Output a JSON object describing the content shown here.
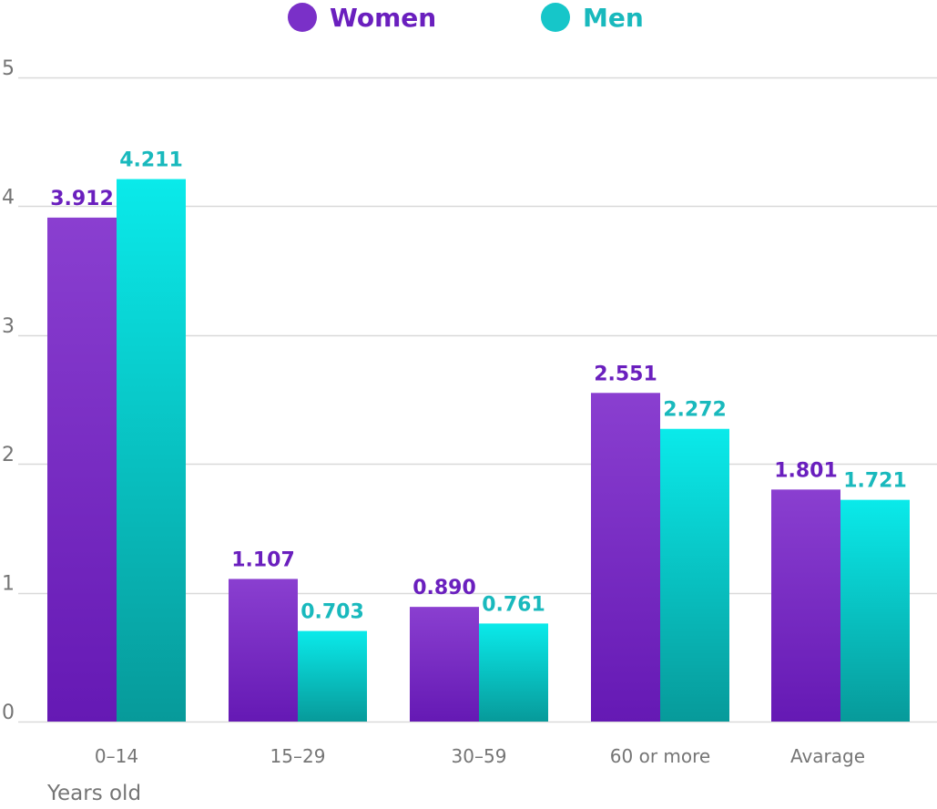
{
  "colors": {
    "women": "#6f20c0",
    "men": "#14c3c8",
    "women_label": "#6a1fbe",
    "men_label": "#19b9bd",
    "grid": "#d9d9d9",
    "tick": "#757575"
  },
  "chart_data": {
    "type": "bar",
    "title": "",
    "xlabel": "Years old",
    "ylabel": "",
    "ylim": [
      0,
      5
    ],
    "yticks": [
      0,
      1,
      2,
      3,
      4,
      5
    ],
    "grid": true,
    "legend_position": "top-center",
    "categories": [
      "0–14",
      "15–29",
      "30–59",
      "60 or more",
      "Avarage"
    ],
    "series": [
      {
        "name": "Women",
        "values": [
          3.912,
          1.107,
          0.89,
          2.551,
          1.801
        ],
        "labels": [
          "3.912",
          "1.107",
          "0.890",
          "2.551",
          "1.801"
        ]
      },
      {
        "name": "Men",
        "values": [
          4.211,
          0.703,
          0.761,
          2.272,
          1.721
        ],
        "labels": [
          "4.211",
          "0.703",
          "0.761",
          "2.272",
          "1.721"
        ]
      }
    ]
  }
}
